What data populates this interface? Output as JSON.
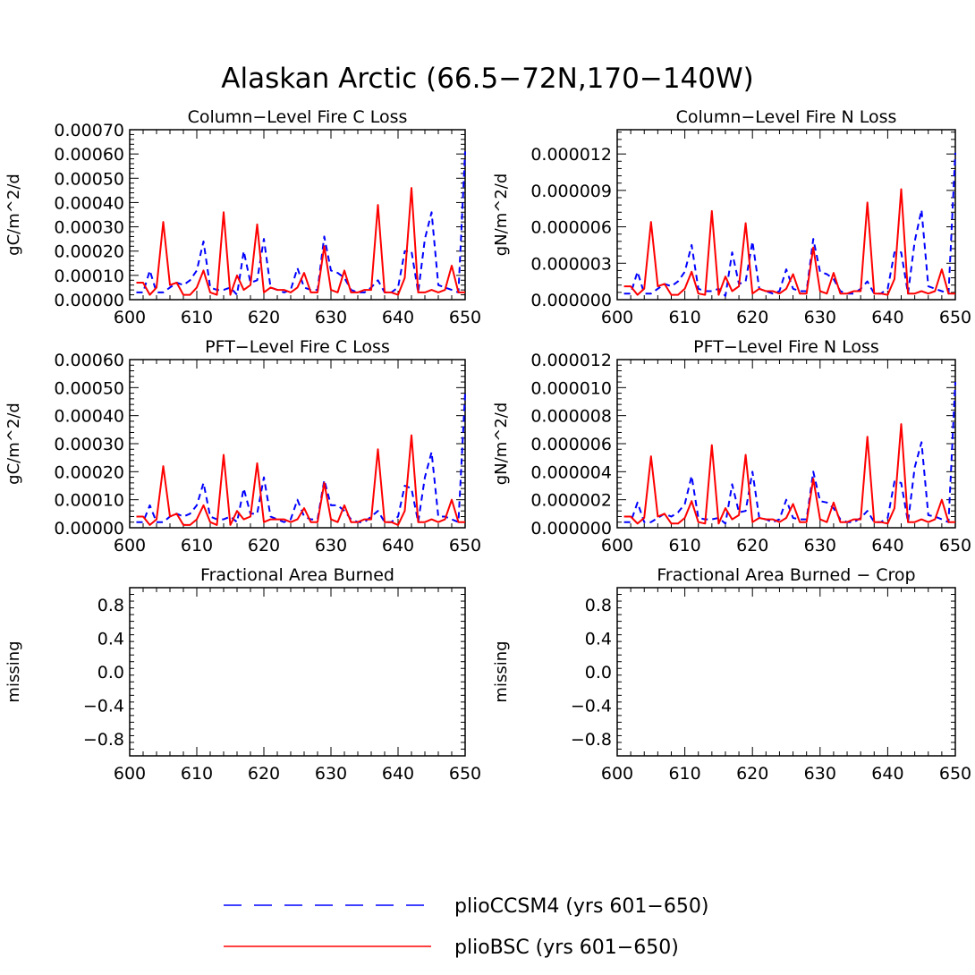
{
  "title": "Alaskan Arctic (66.5−72N,170−140W)",
  "colors": {
    "pliocesm": "#0000ff",
    "pliobsc": "#ff0000",
    "axis": "#000000"
  },
  "legend": [
    {
      "key": "pliocesm",
      "label": "plioCCSM4 (yrs 601−650)",
      "style": "dashed"
    },
    {
      "key": "pliobsc",
      "label": "plioBSC (yrs 601−650)",
      "style": "solid"
    }
  ],
  "chart_data": [
    {
      "type": "line",
      "title": "Column−Level Fire C Loss",
      "ylabel": "gC/m^2/d",
      "xlim": [
        600,
        650
      ],
      "ylim": [
        0,
        0.0007
      ],
      "xticks": [
        600,
        610,
        620,
        630,
        640,
        650
      ],
      "xtick_labels": [
        "600",
        "610",
        "620",
        "630",
        "640",
        "650"
      ],
      "yticks": [
        0,
        0.0001,
        0.0002,
        0.0003,
        0.0004,
        0.0005,
        0.0006,
        0.0007
      ],
      "ytick_labels": [
        "0.00000",
        "0.00010",
        "0.00020",
        "0.00030",
        "0.00040",
        "0.00050",
        "0.00060",
        "0.00070"
      ],
      "x": [
        601,
        602,
        603,
        604,
        605,
        606,
        607,
        608,
        609,
        610,
        611,
        612,
        613,
        614,
        615,
        616,
        617,
        618,
        619,
        620,
        621,
        622,
        623,
        624,
        625,
        626,
        627,
        628,
        629,
        630,
        631,
        632,
        633,
        634,
        635,
        636,
        637,
        638,
        639,
        640,
        641,
        642,
        643,
        644,
        645,
        646,
        647,
        648,
        649,
        650
      ],
      "series": [
        {
          "name": "plioCCSM4",
          "key": "pliocesm",
          "style": "dashed",
          "values": [
            3e-05,
            3e-05,
            0.00012,
            3e-05,
            3e-05,
            5e-05,
            7e-05,
            6e-05,
            8e-05,
            0.00012,
            0.00024,
            5e-05,
            4e-05,
            4e-05,
            5e-05,
            2e-05,
            0.0002,
            7e-05,
            8e-05,
            0.00025,
            5e-05,
            4e-05,
            3e-05,
            4e-05,
            0.00013,
            5e-05,
            4e-05,
            4e-05,
            0.00026,
            0.00012,
            0.00011,
            9e-05,
            4e-05,
            3e-05,
            3e-05,
            5e-05,
            8e-05,
            3e-05,
            3e-05,
            5e-05,
            0.0002,
            0.0002,
            3e-05,
            0.00025,
            0.00036,
            6e-05,
            5e-05,
            4e-05,
            3e-05,
            0.00061
          ]
        },
        {
          "name": "plioBSC",
          "key": "pliobsc",
          "style": "solid",
          "values": [
            7e-05,
            7e-05,
            2e-05,
            5e-05,
            0.00032,
            6e-05,
            7e-05,
            2e-05,
            2e-05,
            5e-05,
            0.00012,
            3e-05,
            2e-05,
            0.00036,
            2e-05,
            0.0001,
            4e-05,
            6e-05,
            0.00031,
            3e-05,
            5e-05,
            4e-05,
            4e-05,
            3e-05,
            5e-05,
            0.00011,
            3e-05,
            3e-05,
            0.00022,
            4e-05,
            3e-05,
            0.00012,
            3e-05,
            3e-05,
            4e-05,
            4e-05,
            0.00039,
            3e-05,
            3e-05,
            2e-05,
            9e-05,
            0.00046,
            3e-05,
            3e-05,
            4e-05,
            3e-05,
            4e-05,
            0.00014,
            3e-05,
            3e-05
          ]
        }
      ]
    },
    {
      "type": "line",
      "title": "Column−Level Fire N Loss",
      "ylabel": "gN/m^2/d",
      "xlim": [
        600,
        650
      ],
      "ylim": [
        0,
        1.4e-05
      ],
      "xticks": [
        600,
        610,
        620,
        630,
        640,
        650
      ],
      "xtick_labels": [
        "600",
        "610",
        "620",
        "630",
        "640",
        "650"
      ],
      "yticks": [
        0,
        3e-06,
        6e-06,
        9e-06,
        1.2e-05
      ],
      "ytick_labels": [
        "0.000000",
        "0.000003",
        "0.000006",
        "0.000009",
        "0.000012"
      ],
      "x": [
        601,
        602,
        603,
        604,
        605,
        606,
        607,
        608,
        609,
        610,
        611,
        612,
        613,
        614,
        615,
        616,
        617,
        618,
        619,
        620,
        621,
        622,
        623,
        624,
        625,
        626,
        627,
        628,
        629,
        630,
        631,
        632,
        633,
        634,
        635,
        636,
        637,
        638,
        639,
        640,
        641,
        642,
        643,
        644,
        645,
        646,
        647,
        648,
        649,
        650
      ],
      "series": [
        {
          "name": "plioCCSM4",
          "key": "pliocesm",
          "style": "dashed",
          "values": [
            5e-07,
            5e-07,
            2.3e-06,
            5e-07,
            5e-07,
            9e-07,
            1.3e-06,
            1.1e-06,
            1.5e-06,
            2.3e-06,
            4.5e-06,
            9e-07,
            7e-07,
            7e-07,
            9e-07,
            3e-07,
            3.9e-06,
            1.3e-06,
            1.5e-06,
            4.8e-06,
            9e-07,
            7e-07,
            5e-07,
            7e-07,
            2.5e-06,
            9e-07,
            7e-07,
            7e-07,
            5e-06,
            2.3e-06,
            2.1e-06,
            1.7e-06,
            7e-07,
            5e-07,
            5e-07,
            9e-07,
            1.5e-06,
            5e-07,
            5e-07,
            9e-07,
            3.9e-06,
            3.9e-06,
            5e-07,
            4.8e-06,
            7.4e-06,
            1.1e-06,
            9e-07,
            7e-07,
            5e-07,
            1.21e-05
          ]
        },
        {
          "name": "plioBSC",
          "key": "pliobsc",
          "style": "solid",
          "values": [
            1.1e-06,
            1.1e-06,
            4e-07,
            9e-07,
            6.4e-06,
            1.1e-06,
            1.3e-06,
            4e-07,
            4e-07,
            9e-07,
            2.3e-06,
            5e-07,
            4e-07,
            7.3e-06,
            4e-07,
            1.9e-06,
            7e-07,
            1.1e-06,
            6.3e-06,
            5e-07,
            9e-07,
            7e-07,
            7e-07,
            5e-07,
            9e-07,
            2.1e-06,
            5e-07,
            5e-07,
            4.3e-06,
            7e-07,
            5e-07,
            2.2e-06,
            5e-07,
            5e-07,
            7e-07,
            7e-07,
            8e-06,
            5e-07,
            5e-07,
            4e-07,
            1.7e-06,
            9.1e-06,
            5e-07,
            5e-07,
            7e-07,
            5e-07,
            7e-07,
            2.5e-06,
            5e-07,
            5e-07
          ]
        }
      ]
    },
    {
      "type": "line",
      "title": "PFT−Level Fire C Loss",
      "ylabel": "gC/m^2/d",
      "xlim": [
        600,
        650
      ],
      "ylim": [
        0,
        0.0006
      ],
      "xticks": [
        600,
        610,
        620,
        630,
        640,
        650
      ],
      "xtick_labels": [
        "600",
        "610",
        "620",
        "630",
        "640",
        "650"
      ],
      "yticks": [
        0,
        0.0001,
        0.0002,
        0.0003,
        0.0004,
        0.0005,
        0.0006
      ],
      "ytick_labels": [
        "0.00000",
        "0.00010",
        "0.00020",
        "0.00030",
        "0.00040",
        "0.00050",
        "0.00060"
      ],
      "x": [
        601,
        602,
        603,
        604,
        605,
        606,
        607,
        608,
        609,
        610,
        611,
        612,
        613,
        614,
        615,
        616,
        617,
        618,
        619,
        620,
        621,
        622,
        623,
        624,
        625,
        626,
        627,
        628,
        629,
        630,
        631,
        632,
        633,
        634,
        635,
        636,
        637,
        638,
        639,
        640,
        641,
        642,
        643,
        644,
        645,
        646,
        647,
        648,
        649,
        650
      ],
      "series": [
        {
          "name": "plioCCSM4",
          "key": "pliocesm",
          "style": "dashed",
          "values": [
            2e-05,
            2e-05,
            8e-05,
            2e-05,
            2e-05,
            4e-05,
            5e-05,
            4e-05,
            5e-05,
            8e-05,
            0.00016,
            4e-05,
            3e-05,
            3e-05,
            4e-05,
            2e-05,
            0.00014,
            5e-05,
            5e-05,
            0.00018,
            4e-05,
            3e-05,
            2e-05,
            3e-05,
            0.0001,
            4e-05,
            3e-05,
            3e-05,
            0.00017,
            8e-05,
            8e-05,
            6e-05,
            3e-05,
            2e-05,
            2e-05,
            4e-05,
            6e-05,
            2e-05,
            2e-05,
            4e-05,
            0.00015,
            0.00014,
            2e-05,
            0.00018,
            0.00027,
            4e-05,
            4e-05,
            3e-05,
            2e-05,
            0.00048
          ]
        },
        {
          "name": "plioBSC",
          "key": "pliobsc",
          "style": "solid",
          "values": [
            4e-05,
            4e-05,
            1e-05,
            3e-05,
            0.00022,
            4e-05,
            5e-05,
            1e-05,
            1e-05,
            3e-05,
            8e-05,
            2e-05,
            1e-05,
            0.00026,
            1e-05,
            6e-05,
            3e-05,
            4e-05,
            0.00023,
            2e-05,
            3e-05,
            3e-05,
            3e-05,
            2e-05,
            3e-05,
            7e-05,
            2e-05,
            2e-05,
            0.00016,
            3e-05,
            2e-05,
            8e-05,
            2e-05,
            2e-05,
            3e-05,
            3e-05,
            0.00028,
            2e-05,
            2e-05,
            1e-05,
            6e-05,
            0.00033,
            2e-05,
            2e-05,
            3e-05,
            2e-05,
            3e-05,
            0.0001,
            2e-05,
            2e-05
          ]
        }
      ]
    },
    {
      "type": "line",
      "title": "PFT−Level Fire N Loss",
      "ylabel": "gN/m^2/d",
      "xlim": [
        600,
        650
      ],
      "ylim": [
        0,
        1.2e-05
      ],
      "xticks": [
        600,
        610,
        620,
        630,
        640,
        650
      ],
      "xtick_labels": [
        "600",
        "610",
        "620",
        "630",
        "640",
        "650"
      ],
      "yticks": [
        0,
        2e-06,
        4e-06,
        6e-06,
        8e-06,
        1e-05,
        1.2e-05
      ],
      "ytick_labels": [
        "0.000000",
        "0.000002",
        "0.000004",
        "0.000006",
        "0.000008",
        "0.000010",
        "0.000012"
      ],
      "x": [
        601,
        602,
        603,
        604,
        605,
        606,
        607,
        608,
        609,
        610,
        611,
        612,
        613,
        614,
        615,
        616,
        617,
        618,
        619,
        620,
        621,
        622,
        623,
        624,
        625,
        626,
        627,
        628,
        629,
        630,
        631,
        632,
        633,
        634,
        635,
        636,
        637,
        638,
        639,
        640,
        641,
        642,
        643,
        644,
        645,
        646,
        647,
        648,
        649,
        650
      ],
      "series": [
        {
          "name": "plioCCSM4",
          "key": "pliocesm",
          "style": "dashed",
          "values": [
            4e-07,
            4e-07,
            1.8e-06,
            4e-07,
            4e-07,
            7e-07,
            1e-06,
            8e-07,
            1.1e-06,
            1.7e-06,
            3.7e-06,
            7e-07,
            6e-07,
            6e-07,
            7e-07,
            3e-07,
            3.1e-06,
            1.1e-06,
            1.2e-06,
            4e-06,
            7e-07,
            6e-07,
            4e-07,
            6e-07,
            2e-06,
            7e-07,
            6e-07,
            6e-07,
            4e-06,
            1.9e-06,
            1.8e-06,
            1.4e-06,
            6e-07,
            4e-07,
            4e-07,
            7e-07,
            1.2e-06,
            4e-07,
            4e-07,
            7e-07,
            3.3e-06,
            3.2e-06,
            4e-07,
            4.3e-06,
            6.1e-06,
            9e-07,
            8e-07,
            6e-07,
            4e-07,
            1.04e-05
          ]
        },
        {
          "name": "plioBSC",
          "key": "pliobsc",
          "style": "solid",
          "values": [
            8e-07,
            8e-07,
            3e-07,
            7e-07,
            5.1e-06,
            8e-07,
            1e-06,
            3e-07,
            3e-07,
            7e-07,
            1.9e-06,
            4e-07,
            3e-07,
            5.9e-06,
            3e-07,
            1.4e-06,
            6e-07,
            9e-07,
            5.2e-06,
            4e-07,
            7e-07,
            6e-07,
            6e-07,
            4e-07,
            7e-07,
            1.7e-06,
            4e-07,
            4e-07,
            3.5e-06,
            6e-07,
            4e-07,
            1.8e-06,
            4e-07,
            4e-07,
            6e-07,
            6e-07,
            6.5e-06,
            4e-07,
            4e-07,
            3e-07,
            1.4e-06,
            7.4e-06,
            4e-07,
            4e-07,
            6e-07,
            4e-07,
            6e-07,
            2e-06,
            4e-07,
            4e-07
          ]
        }
      ]
    },
    {
      "type": "line",
      "title": "Fractional Area Burned",
      "ylabel": "missing",
      "xlim": [
        600,
        650
      ],
      "ylim": [
        -1.0,
        1.0
      ],
      "xticks": [
        600,
        610,
        620,
        630,
        640,
        650
      ],
      "xtick_labels": [
        "600",
        "610",
        "620",
        "630",
        "640",
        "650"
      ],
      "yticks": [
        -0.8,
        -0.4,
        0.0,
        0.4,
        0.8
      ],
      "ytick_labels": [
        "−0.8",
        "−0.4",
        "0.0",
        "0.4",
        "0.8"
      ],
      "x": [],
      "series": []
    },
    {
      "type": "line",
      "title": "Fractional Area Burned − Crop",
      "ylabel": "missing",
      "xlim": [
        600,
        650
      ],
      "ylim": [
        -1.0,
        1.0
      ],
      "xticks": [
        600,
        610,
        620,
        630,
        640,
        650
      ],
      "xtick_labels": [
        "600",
        "610",
        "620",
        "630",
        "640",
        "650"
      ],
      "yticks": [
        -0.8,
        -0.4,
        0.0,
        0.4,
        0.8
      ],
      "ytick_labels": [
        "−0.8",
        "−0.4",
        "0.0",
        "0.4",
        "0.8"
      ],
      "x": [],
      "series": []
    }
  ]
}
